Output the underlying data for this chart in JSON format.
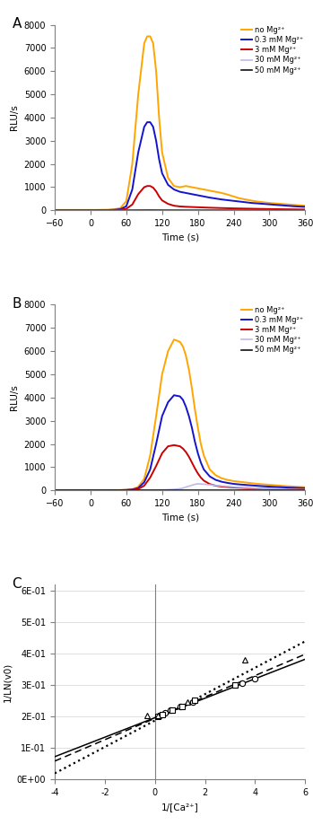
{
  "panel_A": {
    "label": "A",
    "time": [
      -60,
      -50,
      -40,
      -30,
      -20,
      -10,
      0,
      5,
      10,
      20,
      30,
      40,
      50,
      60,
      70,
      80,
      90,
      95,
      100,
      105,
      110,
      115,
      120,
      130,
      140,
      150,
      160,
      170,
      180,
      190,
      200,
      210,
      220,
      230,
      240,
      250,
      260,
      270,
      280,
      290,
      300,
      310,
      320,
      330,
      340,
      350,
      360
    ],
    "no_mg": [
      20,
      20,
      20,
      20,
      20,
      20,
      20,
      20,
      20,
      25,
      30,
      50,
      100,
      400,
      2000,
      5000,
      7200,
      7500,
      7500,
      7200,
      6000,
      4000,
      2500,
      1400,
      1050,
      1000,
      1050,
      1000,
      950,
      900,
      850,
      800,
      750,
      680,
      600,
      520,
      470,
      420,
      380,
      350,
      320,
      300,
      280,
      260,
      240,
      220,
      200
    ],
    "mg_0_3": [
      10,
      10,
      10,
      10,
      10,
      10,
      10,
      10,
      10,
      12,
      15,
      25,
      50,
      180,
      900,
      2500,
      3600,
      3800,
      3800,
      3600,
      3000,
      2200,
      1600,
      1100,
      900,
      800,
      750,
      700,
      650,
      600,
      550,
      510,
      470,
      440,
      410,
      380,
      350,
      320,
      300,
      280,
      260,
      240,
      220,
      200,
      180,
      165,
      150
    ],
    "mg_3": [
      5,
      5,
      5,
      5,
      5,
      5,
      5,
      5,
      5,
      6,
      8,
      12,
      25,
      70,
      250,
      700,
      1000,
      1050,
      1050,
      980,
      820,
      600,
      430,
      280,
      200,
      170,
      155,
      145,
      135,
      125,
      115,
      108,
      100,
      93,
      87,
      82,
      77,
      72,
      67,
      63,
      58,
      54,
      50,
      47,
      44,
      41,
      38
    ],
    "mg_30": [
      3,
      3,
      3,
      3,
      3,
      3,
      3,
      3,
      3,
      3,
      3,
      4,
      5,
      7,
      12,
      18,
      22,
      23,
      24,
      23,
      20,
      17,
      14,
      12,
      10,
      9,
      9,
      8,
      8,
      7,
      7,
      6,
      6,
      6,
      5,
      5,
      5,
      5,
      4,
      4,
      4,
      4,
      4,
      3,
      3,
      3,
      3
    ],
    "mg_50": [
      2,
      2,
      2,
      2,
      2,
      2,
      2,
      2,
      2,
      2,
      2,
      2,
      3,
      4,
      5,
      6,
      7,
      7,
      8,
      7,
      7,
      6,
      6,
      5,
      5,
      5,
      4,
      4,
      4,
      4,
      4,
      3,
      3,
      3,
      3,
      3,
      3,
      3,
      3,
      3,
      2,
      2,
      2,
      2,
      2,
      2,
      2
    ]
  },
  "panel_B": {
    "label": "B",
    "time": [
      -60,
      -50,
      -40,
      -30,
      -20,
      -10,
      0,
      10,
      20,
      30,
      40,
      50,
      60,
      70,
      80,
      90,
      100,
      110,
      120,
      130,
      140,
      150,
      155,
      160,
      165,
      170,
      175,
      180,
      185,
      190,
      200,
      210,
      220,
      230,
      240,
      250,
      260,
      270,
      280,
      290,
      300,
      310,
      320,
      330,
      340,
      350,
      360
    ],
    "no_mg": [
      10,
      10,
      10,
      10,
      10,
      10,
      10,
      10,
      10,
      10,
      12,
      15,
      25,
      50,
      150,
      500,
      1500,
      3200,
      5000,
      6000,
      6500,
      6400,
      6200,
      5800,
      5200,
      4400,
      3500,
      2700,
      2000,
      1500,
      900,
      650,
      520,
      450,
      400,
      370,
      340,
      310,
      280,
      260,
      240,
      220,
      200,
      180,
      165,
      150,
      135
    ],
    "mg_0_3": [
      5,
      5,
      5,
      5,
      5,
      5,
      5,
      5,
      5,
      5,
      7,
      10,
      18,
      35,
      100,
      350,
      900,
      2000,
      3200,
      3800,
      4100,
      4050,
      3900,
      3600,
      3200,
      2700,
      2100,
      1600,
      1200,
      900,
      600,
      450,
      370,
      320,
      280,
      255,
      235,
      215,
      195,
      178,
      162,
      148,
      135,
      123,
      112,
      102,
      93
    ],
    "mg_3": [
      3,
      3,
      3,
      3,
      3,
      3,
      3,
      3,
      3,
      3,
      4,
      6,
      10,
      22,
      60,
      200,
      550,
      1050,
      1600,
      1900,
      1950,
      1900,
      1800,
      1650,
      1450,
      1200,
      950,
      730,
      550,
      420,
      270,
      200,
      165,
      142,
      125,
      112,
      100,
      90,
      82,
      74,
      67,
      61,
      55,
      50,
      46,
      42,
      38
    ],
    "mg_30": [
      2,
      2,
      2,
      2,
      2,
      2,
      2,
      2,
      2,
      2,
      2,
      2,
      3,
      4,
      5,
      7,
      10,
      15,
      22,
      30,
      45,
      70,
      100,
      140,
      180,
      220,
      260,
      280,
      275,
      265,
      240,
      215,
      190,
      170,
      150,
      132,
      116,
      102,
      90,
      80,
      70,
      62,
      55,
      48,
      42,
      37,
      32
    ],
    "mg_50": [
      2,
      2,
      2,
      2,
      2,
      2,
      2,
      2,
      2,
      2,
      2,
      2,
      2,
      2,
      2,
      2,
      2,
      2,
      2,
      2,
      2,
      2,
      2,
      2,
      2,
      2,
      2,
      2,
      2,
      2,
      2,
      2,
      2,
      2,
      2,
      2,
      2,
      2,
      2,
      2,
      2,
      2,
      2,
      2,
      2,
      2,
      2
    ]
  },
  "panel_C": {
    "label": "C",
    "xlim": [
      -4,
      6
    ],
    "ylim": [
      0.0,
      0.62
    ],
    "xlabel": "1/[Ca²⁺]",
    "ylabel": "1/LN(v0)",
    "line1_slope": 0.031,
    "line1_intercept": 0.197,
    "line2_slope": 0.034,
    "line2_intercept": 0.195,
    "line3_slope": 0.042,
    "line3_intercept": 0.188,
    "scatter_circle": [
      [
        0.2,
        0.204
      ],
      [
        0.4,
        0.212
      ],
      [
        0.6,
        0.22
      ],
      [
        1.0,
        0.232
      ],
      [
        1.5,
        0.248
      ],
      [
        3.5,
        0.308
      ],
      [
        4.0,
        0.32
      ]
    ],
    "scatter_square": [
      [
        0.1,
        0.202
      ],
      [
        0.3,
        0.208
      ],
      [
        0.7,
        0.22
      ],
      [
        1.1,
        0.234
      ],
      [
        1.6,
        0.252
      ],
      [
        3.2,
        0.302
      ]
    ],
    "scatter_triangle": [
      [
        -0.3,
        0.205
      ],
      [
        0.1,
        0.205
      ],
      [
        1.3,
        0.246
      ],
      [
        3.6,
        0.38
      ]
    ]
  },
  "colors": {
    "no_mg": "#FFA500",
    "mg_0_3": "#1414CC",
    "mg_3": "#CC0000",
    "mg_30": "#BBBBEE",
    "mg_50": "#111111"
  },
  "legend_labels": [
    "no Mg²⁺",
    "0.3 mM Mg²⁺",
    "3 mM Mg²⁺",
    "30 mM Mg²⁺",
    "50 mM Mg²⁺"
  ],
  "ylim_AB": [
    0,
    8000
  ],
  "xlim_AB": [
    -60,
    360
  ],
  "yticks_AB": [
    0,
    1000,
    2000,
    3000,
    4000,
    5000,
    6000,
    7000,
    8000
  ],
  "xticks_AB": [
    -60,
    0,
    60,
    120,
    180,
    240,
    300,
    360
  ],
  "ylabel_AB": "RLU/s",
  "xlabel_AB": "Time (s)"
}
